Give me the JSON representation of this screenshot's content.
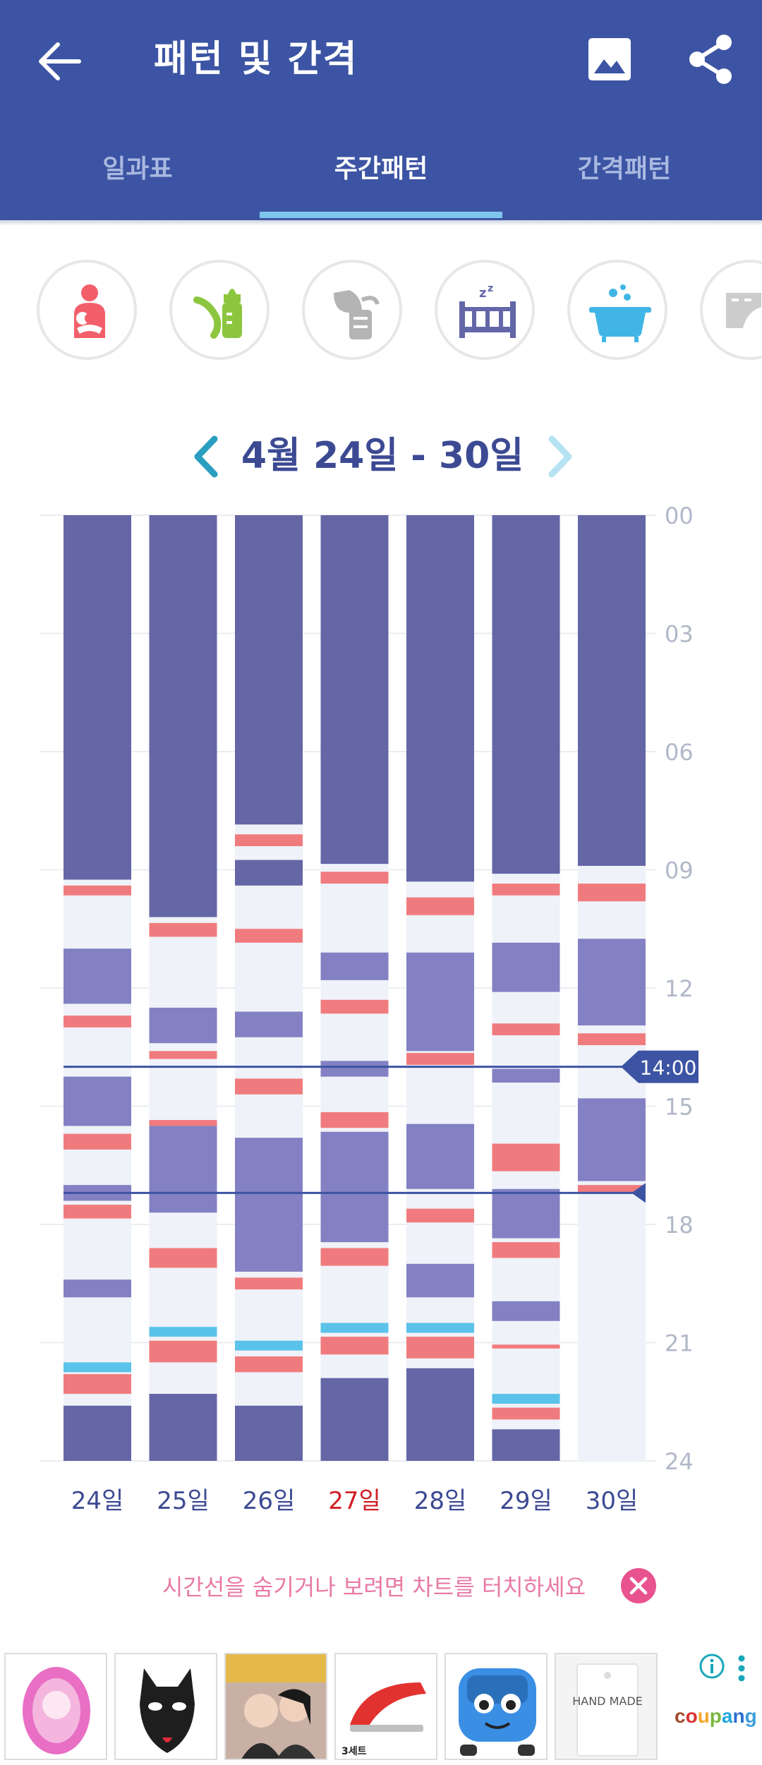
{
  "app": {
    "title": "패턴 및 간격",
    "back_icon": "arrow-back-icon",
    "image_icon": "image-icon",
    "share_icon": "share-icon"
  },
  "tabs": [
    {
      "label": "일과표",
      "active": false
    },
    {
      "label": "주간패턴",
      "active": true
    },
    {
      "label": "간격패턴",
      "active": false
    }
  ],
  "categories": [
    {
      "name": "breastfeeding",
      "icon": "mother-baby-icon",
      "color": "#f25f6b"
    },
    {
      "name": "bottle-feeding",
      "icon": "baby-bottle-icon",
      "color": "#8cc63f"
    },
    {
      "name": "breast-pump",
      "icon": "breast-pump-icon",
      "color": "#b4b4b4"
    },
    {
      "name": "sleep",
      "icon": "crib-sleep-icon",
      "color": "#6367a8"
    },
    {
      "name": "bath",
      "icon": "bathtub-icon",
      "color": "#41b6e6"
    },
    {
      "name": "diaper",
      "icon": "diaper-icon",
      "color": "#cccccc"
    }
  ],
  "range": {
    "label": "4월 24일 - 30일",
    "prev_icon": "chevron-left-icon",
    "next_icon": "chevron-right-icon"
  },
  "chart_data": {
    "type": "stacked-timeline",
    "title": "4월 24일 - 30일",
    "y_unit": "hour",
    "ylim": [
      0,
      24
    ],
    "y_ticks": [
      "00",
      "03",
      "06",
      "09",
      "12",
      "15",
      "18",
      "21",
      "24"
    ],
    "current_time_label": "14:00",
    "current_time_value": 14.0,
    "second_marker_value": 17.2,
    "colors": {
      "night_sleep": "#6466a6",
      "nap": "#8381c3",
      "feeding": "#f07b7e",
      "bath": "#5bc2ea",
      "awake": "#eff2f8",
      "today_highlight": "#d21f26"
    },
    "days": [
      {
        "label": "24일",
        "today": false,
        "segments": [
          {
            "type": "night_sleep",
            "start": 0,
            "end": 9.25
          },
          {
            "type": "feeding",
            "start": 9.4,
            "end": 9.65
          },
          {
            "type": "nap",
            "start": 11.0,
            "end": 12.4
          },
          {
            "type": "feeding",
            "start": 12.7,
            "end": 13.0
          },
          {
            "type": "nap",
            "start": 14.25,
            "end": 15.5
          },
          {
            "type": "feeding",
            "start": 15.7,
            "end": 16.1
          },
          {
            "type": "nap",
            "start": 17.0,
            "end": 17.4
          },
          {
            "type": "feeding",
            "start": 17.5,
            "end": 17.85
          },
          {
            "type": "nap",
            "start": 19.4,
            "end": 19.85
          },
          {
            "type": "bath",
            "start": 21.5,
            "end": 21.75
          },
          {
            "type": "feeding",
            "start": 21.8,
            "end": 22.3
          },
          {
            "type": "night_sleep",
            "start": 22.6,
            "end": 24.0
          }
        ]
      },
      {
        "label": "25일",
        "today": false,
        "segments": [
          {
            "type": "night_sleep",
            "start": 0,
            "end": 10.2
          },
          {
            "type": "feeding",
            "start": 10.35,
            "end": 10.7
          },
          {
            "type": "nap",
            "start": 12.5,
            "end": 13.4
          },
          {
            "type": "feeding",
            "start": 13.6,
            "end": 13.8
          },
          {
            "type": "feeding",
            "start": 15.35,
            "end": 15.5
          },
          {
            "type": "nap",
            "start": 15.5,
            "end": 17.7
          },
          {
            "type": "feeding",
            "start": 18.6,
            "end": 19.1
          },
          {
            "type": "bath",
            "start": 20.6,
            "end": 20.85
          },
          {
            "type": "feeding",
            "start": 20.95,
            "end": 21.5
          },
          {
            "type": "night_sleep",
            "start": 22.3,
            "end": 24.0
          }
        ]
      },
      {
        "label": "26일",
        "today": false,
        "segments": [
          {
            "type": "night_sleep",
            "start": 0,
            "end": 7.85
          },
          {
            "type": "feeding",
            "start": 8.1,
            "end": 8.4
          },
          {
            "type": "night_sleep",
            "start": 8.75,
            "end": 9.4
          },
          {
            "type": "feeding",
            "start": 10.5,
            "end": 10.85
          },
          {
            "type": "nap",
            "start": 12.6,
            "end": 13.25
          },
          {
            "type": "feeding",
            "start": 14.3,
            "end": 14.7
          },
          {
            "type": "nap",
            "start": 15.8,
            "end": 19.2
          },
          {
            "type": "feeding",
            "start": 19.35,
            "end": 19.65
          },
          {
            "type": "bath",
            "start": 20.95,
            "end": 21.2
          },
          {
            "type": "feeding",
            "start": 21.35,
            "end": 21.75
          },
          {
            "type": "night_sleep",
            "start": 22.6,
            "end": 24.0
          }
        ]
      },
      {
        "label": "27일",
        "today": true,
        "segments": [
          {
            "type": "night_sleep",
            "start": 0,
            "end": 8.85
          },
          {
            "type": "feeding",
            "start": 9.05,
            "end": 9.35
          },
          {
            "type": "nap",
            "start": 11.1,
            "end": 11.8
          },
          {
            "type": "feeding",
            "start": 12.3,
            "end": 12.65
          },
          {
            "type": "nap",
            "start": 13.85,
            "end": 14.25
          },
          {
            "type": "feeding",
            "start": 15.15,
            "end": 15.55
          },
          {
            "type": "nap",
            "start": 15.65,
            "end": 18.45
          },
          {
            "type": "feeding",
            "start": 18.6,
            "end": 19.05
          },
          {
            "type": "bath",
            "start": 20.5,
            "end": 20.75
          },
          {
            "type": "feeding",
            "start": 20.85,
            "end": 21.3
          },
          {
            "type": "night_sleep",
            "start": 21.9,
            "end": 24.0
          }
        ]
      },
      {
        "label": "28일",
        "today": false,
        "segments": [
          {
            "type": "night_sleep",
            "start": 0,
            "end": 9.3
          },
          {
            "type": "feeding",
            "start": 9.7,
            "end": 10.15
          },
          {
            "type": "nap",
            "start": 11.1,
            "end": 13.6
          },
          {
            "type": "feeding",
            "start": 13.65,
            "end": 13.95
          },
          {
            "type": "nap",
            "start": 15.45,
            "end": 17.1
          },
          {
            "type": "feeding",
            "start": 17.6,
            "end": 17.95
          },
          {
            "type": "nap",
            "start": 19.0,
            "end": 19.85
          },
          {
            "type": "bath",
            "start": 20.5,
            "end": 20.75
          },
          {
            "type": "feeding",
            "start": 20.85,
            "end": 21.4
          },
          {
            "type": "night_sleep",
            "start": 21.65,
            "end": 24.0
          }
        ]
      },
      {
        "label": "29일",
        "today": false,
        "segments": [
          {
            "type": "night_sleep",
            "start": 0,
            "end": 9.1
          },
          {
            "type": "feeding",
            "start": 9.35,
            "end": 9.65
          },
          {
            "type": "nap",
            "start": 10.85,
            "end": 12.1
          },
          {
            "type": "feeding",
            "start": 12.9,
            "end": 13.2
          },
          {
            "type": "nap",
            "start": 14.05,
            "end": 14.4
          },
          {
            "type": "feeding",
            "start": 15.95,
            "end": 16.65
          },
          {
            "type": "nap",
            "start": 17.1,
            "end": 18.35
          },
          {
            "type": "feeding",
            "start": 18.45,
            "end": 18.85
          },
          {
            "type": "nap",
            "start": 19.95,
            "end": 20.45
          },
          {
            "type": "feeding",
            "start": 21.05,
            "end": 21.15
          },
          {
            "type": "bath",
            "start": 22.3,
            "end": 22.55
          },
          {
            "type": "feeding",
            "start": 22.65,
            "end": 22.95
          },
          {
            "type": "night_sleep",
            "start": 23.2,
            "end": 24.0
          }
        ]
      },
      {
        "label": "30일",
        "today": false,
        "segments": [
          {
            "type": "night_sleep",
            "start": 0,
            "end": 8.9
          },
          {
            "type": "feeding",
            "start": 9.35,
            "end": 9.8
          },
          {
            "type": "nap",
            "start": 10.75,
            "end": 12.95
          },
          {
            "type": "feeding",
            "start": 13.15,
            "end": 13.45
          },
          {
            "type": "nap",
            "start": 14.8,
            "end": 16.9
          },
          {
            "type": "feeding",
            "start": 17.0,
            "end": 17.2
          }
        ]
      }
    ]
  },
  "hint": {
    "text": "시간선을 숨기거나 보려면 차트를 터치하세요",
    "close_icon": "close-icon"
  },
  "ads": {
    "brand": "coupang",
    "items": [
      {
        "name": "balloon-princess-mirror",
        "icon": "pink-balloon-icon"
      },
      {
        "name": "leather-dog-mask",
        "icon": "mask-icon"
      },
      {
        "name": "couple-photo",
        "icon": "photo-icon"
      },
      {
        "name": "stapler-set",
        "icon": "stapler-icon",
        "badge": "3세트"
      },
      {
        "name": "tayo-bus-balloon",
        "icon": "bus-balloon-icon"
      },
      {
        "name": "handmade-tag",
        "icon": "tag-icon",
        "text": "HAND MADE"
      }
    ],
    "info_icon": "info-icon",
    "more_icon": "more-vertical-icon"
  }
}
